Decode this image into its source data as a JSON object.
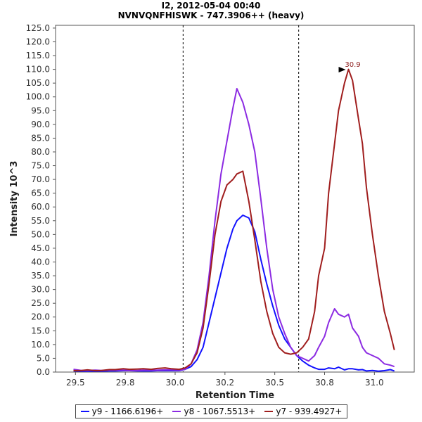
{
  "chart_data": {
    "type": "line",
    "title": "I2, 2012-05-04 00:40",
    "subtitle": "NVNVQNFHISWK - 747.3906++ (heavy)",
    "xlabel": "Retention Time",
    "ylabel": "Intensity 10^3",
    "xlim": [
      29.4,
      31.2
    ],
    "ylim": [
      0,
      126
    ],
    "x_ticks": [
      "29.5",
      "29.8",
      "30.0",
      "30.2",
      "30.5",
      "30.8",
      "31.0"
    ],
    "x_tick_values": [
      29.5,
      29.75,
      30.0,
      30.25,
      30.5,
      30.75,
      31.0
    ],
    "y_ticks": [
      "0.0",
      "5.0",
      "10.0",
      "15.0",
      "20.0",
      "25.0",
      "30.0",
      "35.0",
      "40.0",
      "45.0",
      "50.0",
      "55.0",
      "60.0",
      "65.0",
      "70.0",
      "75.0",
      "80.0",
      "85.0",
      "90.0",
      "95.0",
      "100.0",
      "105.0",
      "110.0",
      "115.0",
      "120.0",
      "125.0"
    ],
    "y_tick_values": [
      0,
      5,
      10,
      15,
      20,
      25,
      30,
      35,
      40,
      45,
      50,
      55,
      60,
      65,
      70,
      75,
      80,
      85,
      90,
      95,
      100,
      105,
      110,
      115,
      120,
      125
    ],
    "vertical_lines": [
      30.04,
      30.62
    ],
    "annotation": {
      "text": "30.9",
      "x": 30.87,
      "y": 109.9,
      "series": "y7 - 939.4927+"
    },
    "grid": false,
    "legend_position": "bottom",
    "x": [
      29.49,
      29.53,
      29.56,
      29.6,
      29.63,
      29.67,
      29.7,
      29.74,
      29.77,
      29.81,
      29.84,
      29.88,
      29.91,
      29.95,
      29.98,
      30.02,
      30.05,
      30.08,
      30.11,
      30.14,
      30.17,
      30.2,
      30.23,
      30.26,
      30.29,
      30.31,
      30.34,
      30.37,
      30.4,
      30.43,
      30.46,
      30.49,
      30.52,
      30.55,
      30.58,
      30.61,
      30.64,
      30.67,
      30.7,
      30.72,
      30.75,
      30.77,
      30.8,
      30.82,
      30.85,
      30.87,
      30.89,
      30.92,
      30.94,
      30.96,
      30.99,
      31.02,
      31.05,
      31.08,
      31.1
    ],
    "series": [
      {
        "name": "y9 - 1166.6196+",
        "color": "#1212ff",
        "values": [
          0.4,
          0.3,
          0.3,
          0.3,
          0.3,
          0.4,
          0.4,
          0.5,
          0.5,
          0.4,
          0.4,
          0.4,
          0.5,
          0.5,
          0.5,
          0.5,
          1.0,
          2.0,
          4.5,
          9.0,
          18.0,
          27.0,
          36.0,
          45.0,
          52.0,
          55.0,
          57.0,
          56.0,
          51.0,
          41.0,
          32.0,
          24.0,
          17.0,
          12.0,
          9.0,
          6.0,
          4.0,
          2.5,
          1.5,
          1.0,
          1.0,
          1.5,
          1.2,
          1.8,
          0.8,
          1.2,
          1.2,
          0.8,
          0.9,
          0.4,
          0.6,
          0.3,
          0.5,
          0.9,
          0.4
        ]
      },
      {
        "name": "y8 - 1067.5513+",
        "color": "#8c2be2",
        "values": [
          1.0,
          0.6,
          0.6,
          0.7,
          0.6,
          0.7,
          0.7,
          0.7,
          0.6,
          0.6,
          0.7,
          0.7,
          0.7,
          0.8,
          0.8,
          0.7,
          1.0,
          3.0,
          8.0,
          18.0,
          35.0,
          55.0,
          72.0,
          84.0,
          96.0,
          103.0,
          98.0,
          90.0,
          80.0,
          63.0,
          45.0,
          30.0,
          20.0,
          14.0,
          9.0,
          6.0,
          5.0,
          4.0,
          6.0,
          9.0,
          13.0,
          18.0,
          23.0,
          21.0,
          20.0,
          21.0,
          16.0,
          13.0,
          9.0,
          7.0,
          6.0,
          5.0,
          3.0,
          2.5,
          2.0
        ]
      },
      {
        "name": "y7 - 939.4927+",
        "color": "#a01e1e",
        "values": [
          0.5,
          0.6,
          0.8,
          0.5,
          0.6,
          0.9,
          0.9,
          1.2,
          1.0,
          1.1,
          1.2,
          1.0,
          1.3,
          1.5,
          1.2,
          1.0,
          1.5,
          3.0,
          7.0,
          16.0,
          32.0,
          50.0,
          62.0,
          68.0,
          70.0,
          72.0,
          73.0,
          62.0,
          48.0,
          33.0,
          22.0,
          14.0,
          9.0,
          7.0,
          6.5,
          7.0,
          9.0,
          12.0,
          22.0,
          35.0,
          45.0,
          65.0,
          83.0,
          95.0,
          105.0,
          110.0,
          106.0,
          92.0,
          83.0,
          67.0,
          50.0,
          35.0,
          22.0,
          14.0,
          8.0
        ]
      }
    ]
  }
}
